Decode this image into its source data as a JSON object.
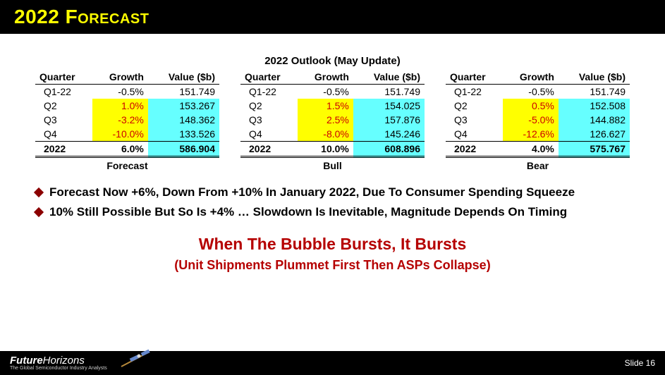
{
  "title": "2022 Forecast",
  "outlook_title": "2022 Outlook (May Update)",
  "columns": [
    "Quarter",
    "Growth",
    "Value ($b)"
  ],
  "scenarios": [
    {
      "caption": "Forecast",
      "rows": [
        {
          "q": "Q1-22",
          "g": "-0.5%",
          "v": "151.749",
          "hl": false
        },
        {
          "q": "Q2",
          "g": "1.0%",
          "v": "153.267",
          "hl": true
        },
        {
          "q": "Q3",
          "g": "-3.2%",
          "v": "148.362",
          "hl": true
        },
        {
          "q": "Q4",
          "g": "-10.0%",
          "v": "133.526",
          "hl": true
        }
      ],
      "total": {
        "q": "2022",
        "g": "6.0%",
        "v": "586.904"
      }
    },
    {
      "caption": "Bull",
      "rows": [
        {
          "q": "Q1-22",
          "g": "-0.5%",
          "v": "151.749",
          "hl": false
        },
        {
          "q": "Q2",
          "g": "1.5%",
          "v": "154.025",
          "hl": true
        },
        {
          "q": "Q3",
          "g": "2.5%",
          "v": "157.876",
          "hl": true
        },
        {
          "q": "Q4",
          "g": "-8.0%",
          "v": "145.246",
          "hl": true
        }
      ],
      "total": {
        "q": "2022",
        "g": "10.0%",
        "v": "608.896"
      }
    },
    {
      "caption": "Bear",
      "rows": [
        {
          "q": "Q1-22",
          "g": "-0.5%",
          "v": "151.749",
          "hl": false
        },
        {
          "q": "Q2",
          "g": "0.5%",
          "v": "152.508",
          "hl": true
        },
        {
          "q": "Q3",
          "g": "-5.0%",
          "v": "144.882",
          "hl": true
        },
        {
          "q": "Q4",
          "g": "-12.6%",
          "v": "126.627",
          "hl": true
        }
      ],
      "total": {
        "q": "2022",
        "g": "4.0%",
        "v": "575.767"
      }
    }
  ],
  "bullets": [
    "Forecast Now +6%, Down From +10% In January 2022, Due To Consumer Spending Squeeze",
    "10% Still Possible But So Is +4% … Slowdown Is Inevitable, Magnitude Depends On Timing"
  ],
  "headline1": "When The Bubble Bursts, It Bursts",
  "headline2": "(Unit Shipments Plummet First Then ASPs Collapse)",
  "footer": {
    "brand_bold": "Future",
    "brand_light": "Horizons",
    "brand_sub": "The Global Semiconductor Industry Analysts",
    "slide": "Slide 16"
  },
  "colors": {
    "title_bg": "#000000",
    "title_fg": "#ffff00",
    "highlight_yellow": "#ffff00",
    "highlight_cyan": "#66ffff",
    "growth_red": "#cc0000",
    "bullet_diamond": "#8b0000",
    "headline_red": "#b50000",
    "footer_bg": "#000000"
  }
}
